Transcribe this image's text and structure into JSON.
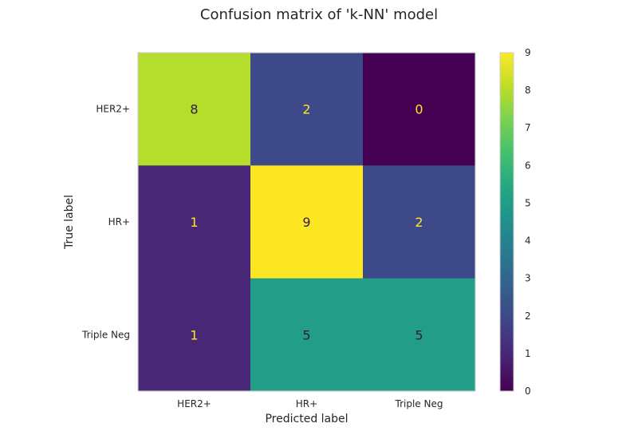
{
  "chart_data": {
    "type": "heatmap",
    "title": "Confusion matrix of 'k-NN' model",
    "xlabel": "Predicted label",
    "ylabel": "True label",
    "x_categories": [
      "HER2+",
      "HR+",
      "Triple Neg"
    ],
    "y_categories": [
      "HER2+",
      "HR+",
      "Triple Neg"
    ],
    "values": [
      [
        8,
        2,
        0
      ],
      [
        1,
        9,
        2
      ],
      [
        1,
        5,
        5
      ]
    ],
    "colormap": "viridis",
    "colorbar": {
      "min": 0,
      "max": 9,
      "ticks": [
        0,
        1,
        2,
        3,
        4,
        5,
        6,
        7,
        8,
        9
      ]
    },
    "grid": false
  }
}
